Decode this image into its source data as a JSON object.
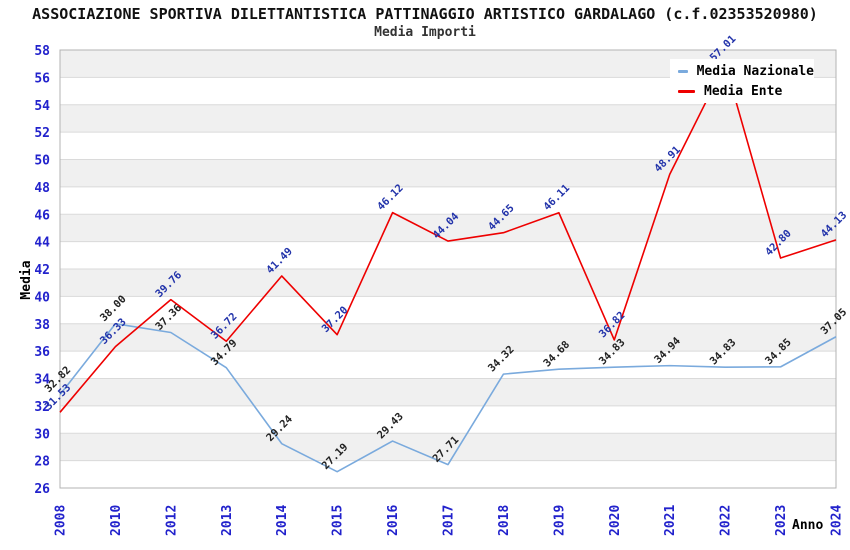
{
  "header": {
    "title": "ASSOCIAZIONE SPORTIVA DILETTANTISTICA PATTINAGGIO ARTISTICO GARDALAGO (c.f.02353520980)",
    "subtitle": "Media Importi"
  },
  "legend": {
    "items": [
      {
        "label": "Media Nazionale",
        "color": "#7aaadd"
      },
      {
        "label": "Media Ente",
        "color": "#ee0000"
      }
    ]
  },
  "chart_data": {
    "type": "line",
    "title": "Media Importi",
    "xlabel": "Anno",
    "ylabel": "Media",
    "categories": [
      "2008",
      "2010",
      "2012",
      "2013",
      "2014",
      "2015",
      "2016",
      "2017",
      "2018",
      "2019",
      "2020",
      "2021",
      "2022",
      "2023",
      "2024"
    ],
    "series": [
      {
        "name": "Media Nazionale",
        "color": "#7aaadd",
        "label_color": "#222222",
        "values": [
          32.82,
          38.0,
          37.36,
          34.79,
          29.24,
          27.19,
          29.43,
          27.71,
          34.32,
          34.68,
          34.83,
          34.94,
          34.83,
          34.85,
          37.05
        ]
      },
      {
        "name": "Media Ente",
        "color": "#ee0000",
        "label_color": "#2233aa",
        "values": [
          31.53,
          36.33,
          39.76,
          36.72,
          41.49,
          37.2,
          46.12,
          44.04,
          44.65,
          46.11,
          36.82,
          48.91,
          57.01,
          42.8,
          44.13
        ]
      }
    ],
    "ylim": [
      26,
      58
    ],
    "ytick_step": 2,
    "yticks": [
      26,
      28,
      30,
      32,
      34,
      36,
      38,
      40,
      42,
      44,
      46,
      48,
      50,
      52,
      54,
      56,
      58
    ],
    "grid": "horizontal-bands",
    "legend_position": "top-right"
  },
  "colors": {
    "tick_label": "#2222cc",
    "grid_band": "#f0f0f0",
    "grid_line": "#dadada",
    "frame": "#b3b3b3",
    "axis_title": "#000000"
  }
}
